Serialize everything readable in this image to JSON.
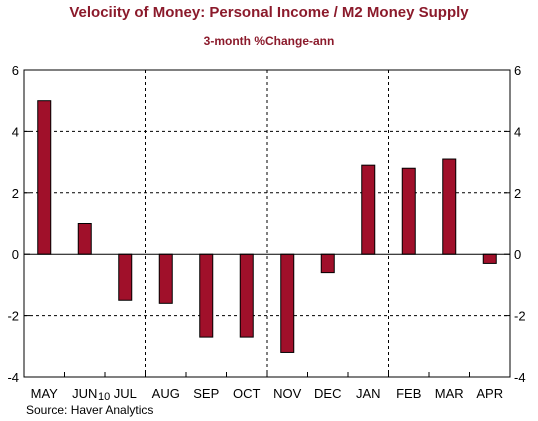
{
  "header": {
    "title": "Velociity of Money: Personal Income / M2 Money Supply",
    "subtitle": "3-month %Change-ann"
  },
  "footer": {
    "source": "Source: Haver Analytics",
    "year_marker": "10"
  },
  "colors": {
    "bar_fill": "#a0102a",
    "bar_stroke": "#000000",
    "title_color": "#8b1a2b"
  },
  "chart_data": {
    "type": "bar",
    "title": "Velociity of Money: Personal Income / M2 Money Supply",
    "subtitle": "3-month %Change-ann",
    "xlabel": "",
    "ylabel": "",
    "categories": [
      "MAY",
      "JUN",
      "JUL",
      "AUG",
      "SEP",
      "OCT",
      "NOV",
      "DEC",
      "JAN",
      "FEB",
      "MAR",
      "APR"
    ],
    "values": [
      5.0,
      1.0,
      -1.5,
      -1.6,
      -2.7,
      -2.7,
      -3.2,
      -0.6,
      2.9,
      2.8,
      3.1,
      -0.3
    ],
    "ylim": [
      -4,
      6
    ],
    "yticks": [
      -4,
      -2,
      0,
      2,
      4,
      6
    ],
    "grid": true,
    "legend": "none"
  }
}
